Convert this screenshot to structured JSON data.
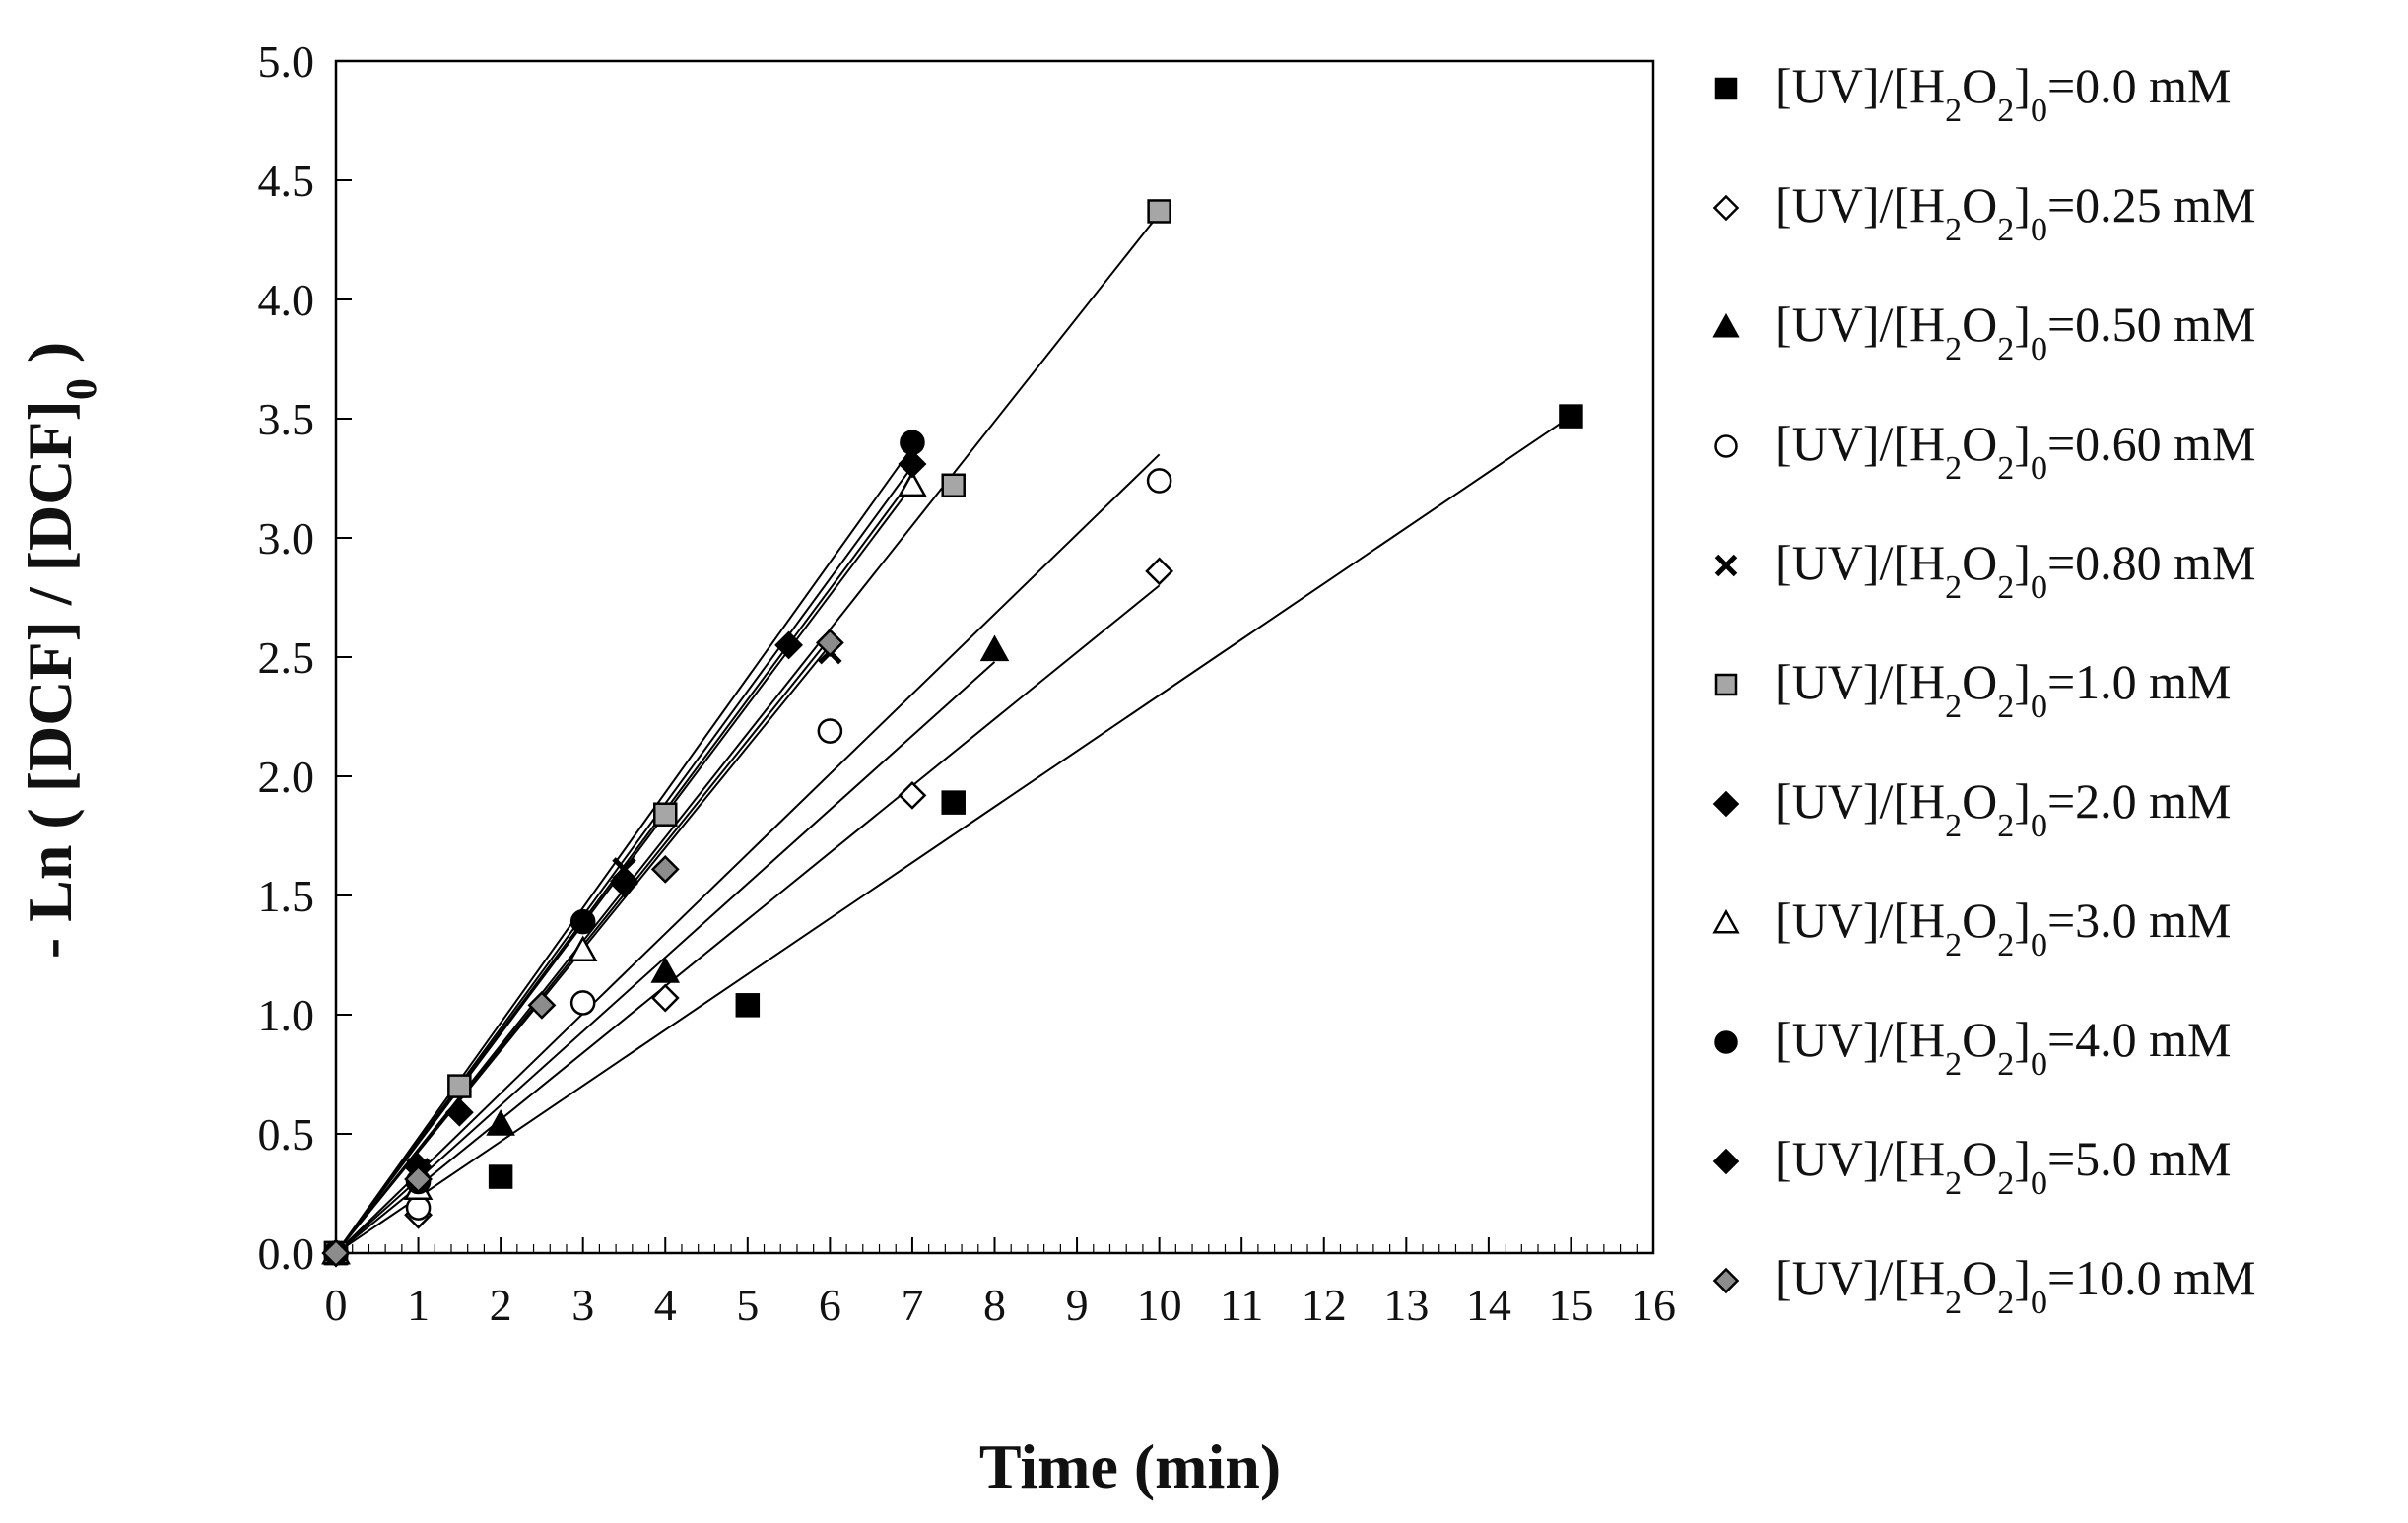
{
  "chart_data": {
    "type": "scatter",
    "title": "",
    "xlabel": "Time (min)",
    "ylabel": "- Ln ( [DCF] / [DCF]0 )",
    "xlim": [
      0,
      16
    ],
    "ylim": [
      0,
      5
    ],
    "xticks": [
      "0",
      "1",
      "2",
      "3",
      "4",
      "5",
      "6",
      "7",
      "8",
      "9",
      "10",
      "11",
      "12",
      "13",
      "14",
      "15",
      "16"
    ],
    "yticks": [
      "0.0",
      "0.5",
      "1.0",
      "1.5",
      "2.0",
      "2.5",
      "3.0",
      "3.5",
      "4.0",
      "4.5",
      "5.0"
    ],
    "legend_position": "right",
    "series": [
      {
        "name": "[UV]/[H2O2]0=0.0 mM",
        "conc": "0.0",
        "marker": "square",
        "fill": "#000000",
        "x": [
          0,
          2,
          5,
          7.5,
          15
        ],
        "y": [
          0,
          0.32,
          1.04,
          1.89,
          3.51
        ],
        "fit": {
          "x": [
            0,
            15
          ],
          "y": [
            0,
            3.51
          ]
        }
      },
      {
        "name": "[UV]/[H2O2]0=0.25 mM",
        "conc": "0.25",
        "marker": "diamond",
        "fill": "#ffffff",
        "x": [
          0,
          1,
          4,
          7,
          10
        ],
        "y": [
          0,
          0.16,
          1.07,
          1.92,
          2.86
        ],
        "fit": {
          "x": [
            0,
            10
          ],
          "y": [
            0,
            2.8
          ]
        }
      },
      {
        "name": "[UV]/[H2O2]0=0.50 mM",
        "conc": "0.50",
        "marker": "triangle",
        "fill": "#000000",
        "x": [
          0,
          2,
          4,
          8
        ],
        "y": [
          0,
          0.54,
          1.18,
          2.53
        ],
        "fit": {
          "x": [
            0,
            8
          ],
          "y": [
            0,
            2.48
          ]
        }
      },
      {
        "name": "[UV]/[H2O2]0=0.60 mM",
        "conc": "0.60",
        "marker": "circle",
        "fill": "#ffffff",
        "x": [
          0,
          1,
          3,
          6,
          10
        ],
        "y": [
          0,
          0.19,
          1.05,
          2.19,
          3.24
        ],
        "fit": {
          "x": [
            0,
            10
          ],
          "y": [
            0,
            3.35
          ]
        }
      },
      {
        "name": "[UV]/[H2O2]0=0.80 mM",
        "conc": "0.80",
        "marker": "cross",
        "fill": "#000000",
        "x": [
          0,
          1,
          3.5,
          6
        ],
        "y": [
          0,
          0.35,
          1.61,
          2.52
        ],
        "fit": {
          "x": [
            0,
            6
          ],
          "y": [
            0,
            2.55
          ]
        }
      },
      {
        "name": "[UV]/[H2O2]0=1.0 mM",
        "conc": "1.0",
        "marker": "square",
        "fill": "#a6a6a6",
        "x": [
          0,
          1.5,
          4,
          7.5,
          10
        ],
        "y": [
          0,
          0.7,
          1.84,
          3.22,
          4.37
        ],
        "fit": {
          "x": [
            0,
            10
          ],
          "y": [
            0,
            4.36
          ]
        }
      },
      {
        "name": "[UV]/[H2O2]0=2.0 mM",
        "conc": "2.0",
        "marker": "diamond",
        "fill": "#000000",
        "x": [
          0,
          1.5,
          3.5,
          5.5,
          7
        ],
        "y": [
          0,
          0.59,
          1.55,
          2.55,
          3.31
        ],
        "fit": {
          "x": [
            0,
            7
          ],
          "y": [
            0,
            3.25
          ]
        }
      },
      {
        "name": "[UV]/[H2O2]0=3.0 mM",
        "conc": "3.0",
        "marker": "triangle",
        "fill": "#ffffff",
        "x": [
          0,
          1,
          3,
          7
        ],
        "y": [
          0,
          0.27,
          1.27,
          3.22
        ],
        "fit": {
          "x": [
            0,
            7
          ],
          "y": [
            0,
            3.22
          ]
        }
      },
      {
        "name": "[UV]/[H2O2]0=4.0 mM",
        "conc": "4.0",
        "marker": "circle",
        "fill": "#000000",
        "x": [
          0,
          1,
          3,
          7
        ],
        "y": [
          0,
          0.3,
          1.39,
          3.4
        ],
        "fit": {
          "x": [
            0,
            7
          ],
          "y": [
            0,
            3.38
          ]
        }
      },
      {
        "name": "[UV]/[H2O2]0=5.0 mM",
        "conc": "5.0",
        "marker": "diamond",
        "fill": "#000000",
        "x": [
          0,
          1,
          3.5,
          7
        ],
        "y": [
          0,
          0.36,
          1.56,
          3.31
        ],
        "fit": {
          "x": [
            0,
            7
          ],
          "y": [
            0,
            3.3
          ]
        }
      },
      {
        "name": "[UV]/[H2O2]0=10.0 mM",
        "conc": "10.0",
        "marker": "diamond",
        "fill": "#8c8c8c",
        "x": [
          0,
          1,
          2.5,
          4,
          6
        ],
        "y": [
          0,
          0.31,
          1.04,
          1.61,
          2.56
        ],
        "fit": {
          "x": [
            0,
            6
          ],
          "y": [
            0,
            2.58
          ]
        }
      }
    ]
  }
}
